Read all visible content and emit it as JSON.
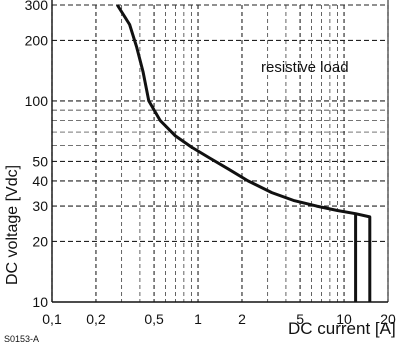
{
  "chart_data": {
    "type": "line",
    "x_scale": "log",
    "y_scale": "log",
    "xlim": [
      0.1,
      20
    ],
    "ylim": [
      10,
      300
    ],
    "xlabel": "DC current [A]",
    "ylabel": "DC voltage [Vdc]",
    "x_ticks": [
      {
        "value": 0.1,
        "label": "0,1"
      },
      {
        "value": 0.2,
        "label": "0,2"
      },
      {
        "value": 0.5,
        "label": "0,5"
      },
      {
        "value": 1,
        "label": "1"
      },
      {
        "value": 2,
        "label": "2"
      },
      {
        "value": 5,
        "label": "5"
      },
      {
        "value": 10,
        "label": "10"
      },
      {
        "value": 20,
        "label": "20"
      }
    ],
    "y_ticks": [
      {
        "value": 10,
        "label": "10"
      },
      {
        "value": 20,
        "label": "20"
      },
      {
        "value": 30,
        "label": "30"
      },
      {
        "value": 40,
        "label": "40"
      },
      {
        "value": 50,
        "label": "50"
      },
      {
        "value": 100,
        "label": "100"
      },
      {
        "value": 200,
        "label": "200"
      },
      {
        "value": 300,
        "label": "300"
      }
    ],
    "grid": true,
    "annotations": [
      {
        "text": "resistive load",
        "x": 4.5,
        "y": 160
      }
    ],
    "series": [
      {
        "x": [
          0.28,
          0.34,
          0.38,
          0.42,
          0.46,
          0.55,
          0.7,
          0.9,
          1.2,
          1.6,
          2.2,
          3.2,
          4.5,
          6.5,
          9,
          12,
          15,
          15
        ],
        "y": [
          300,
          240,
          185,
          140,
          100,
          80,
          67,
          59,
          52,
          46,
          40,
          35,
          32,
          30,
          28.5,
          27.5,
          26.5,
          10
        ],
        "color": "#111111"
      },
      {
        "x": [
          12,
          12
        ],
        "y": [
          27.5,
          10
        ],
        "color": "#111111"
      }
    ],
    "corner_code": "S0153-A"
  }
}
